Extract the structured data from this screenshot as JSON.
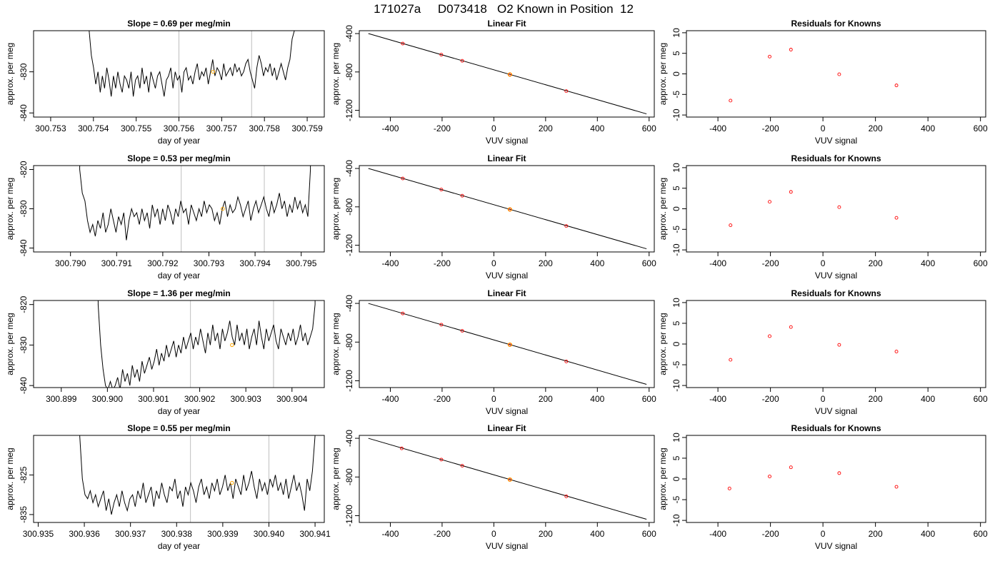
{
  "figure": {
    "title": "171027a     D073418   O2 Known in Position  12"
  },
  "chart_data": [
    {
      "type": "line",
      "panel": "row1-trace",
      "title": "Slope =  0.69  per meg/min",
      "xlabel": "day of year",
      "ylabel": "approx. per meg",
      "xlim": [
        300.7526,
        300.7594
      ],
      "ylim": [
        -841,
        -820
      ],
      "xticks": [
        "300.753",
        "300.754",
        "300.755",
        "300.756",
        "300.757",
        "300.758",
        "300.759"
      ],
      "xtick_values": [
        300.753,
        300.754,
        300.755,
        300.756,
        300.757,
        300.758,
        300.759
      ],
      "yticks": [
        "-840",
        "-830"
      ],
      "ytick_values": [
        -840,
        -830
      ],
      "vlines": [
        300.756,
        300.7577
      ],
      "marker": {
        "x": 300.7568,
        "y": -830,
        "color": "#ffa500"
      },
      "x_start": 300.7539,
      "x_end": 300.7587,
      "y_trace": [
        -820,
        -826,
        -829,
        -833,
        -830,
        -835,
        -831,
        -834,
        -829,
        -832,
        -836,
        -831,
        -834,
        -830,
        -833,
        -835,
        -831,
        -832,
        -834,
        -830,
        -836,
        -832,
        -831,
        -834,
        -829,
        -833,
        -831,
        -835,
        -830,
        -832,
        -834,
        -831,
        -830,
        -833,
        -836,
        -832,
        -831,
        -829,
        -834,
        -830,
        -832,
        -831,
        -835,
        -830,
        -829,
        -832,
        -831,
        -833,
        -830,
        -828,
        -832,
        -830,
        -831,
        -829,
        -833,
        -830,
        -827,
        -831,
        -829,
        -830,
        -832,
        -828,
        -831,
        -830,
        -829,
        -831,
        -828,
        -830,
        -829,
        -831,
        -830,
        -828,
        -827,
        -830,
        -832,
        -834,
        -829,
        -826,
        -828,
        -831,
        -829,
        -830,
        -828,
        -831,
        -829,
        -832,
        -830,
        -828,
        -830,
        -832,
        -829,
        -827,
        -822,
        -820
      ],
      "y_trace_note": ""
    },
    {
      "type": "scatter-line",
      "panel": "row1-fit",
      "title": "Linear Fit",
      "xlabel": "VUV signal",
      "ylabel": "approx. per meg",
      "xlim": [
        -520,
        620
      ],
      "ylim": [
        -1270,
        -370
      ],
      "xticks": [
        "-400",
        "-200",
        "0",
        "200",
        "400",
        "600"
      ],
      "xtick_values": [
        -400,
        -200,
        0,
        200,
        400,
        600
      ],
      "yticks": [
        "-400",
        "-800",
        "-1200"
      ],
      "ytick_values": [
        -400,
        -800,
        -1200
      ],
      "line": [
        [
          -485,
          -400
        ],
        [
          590,
          -1237
        ]
      ],
      "points": [
        [
          -352,
          -504
        ],
        [
          -203,
          -620
        ],
        [
          -122,
          -684
        ],
        [
          62,
          -827
        ],
        [
          280,
          -1000
        ]
      ],
      "highlight_index": 3
    },
    {
      "type": "scatter",
      "panel": "row1-resid",
      "title": "Residuals for Knowns",
      "xlabel": "VUV signal",
      "ylabel": "approx. per meg",
      "xlim": [
        -520,
        620
      ],
      "ylim": [
        -10.5,
        10.5
      ],
      "xticks": [
        "-400",
        "-200",
        "0",
        "200",
        "400",
        "600"
      ],
      "xtick_values": [
        -400,
        -200,
        0,
        200,
        400,
        600
      ],
      "yticks": [
        "-10",
        "-5",
        "0",
        "5",
        "10"
      ],
      "ytick_values": [
        -10,
        -5,
        0,
        5,
        10
      ],
      "points": [
        [
          -352,
          -6.5
        ],
        [
          -203,
          4.2
        ],
        [
          -122,
          5.9
        ],
        [
          62,
          -0.1
        ],
        [
          280,
          -2.8
        ]
      ]
    },
    {
      "type": "line",
      "panel": "row2-trace",
      "title": "Slope =  0.53  per meg/min",
      "xlabel": "day of year",
      "ylabel": "approx. per meg",
      "xlim": [
        300.7892,
        300.7955
      ],
      "ylim": [
        -841,
        -819
      ],
      "xticks": [
        "300.790",
        "300.791",
        "300.792",
        "300.793",
        "300.794",
        "300.795"
      ],
      "xtick_values": [
        300.79,
        300.791,
        300.792,
        300.793,
        300.794,
        300.795
      ],
      "yticks": [
        "-840",
        "-830",
        "-820"
      ],
      "ytick_values": [
        -840,
        -830,
        -820
      ],
      "vlines": [
        300.7924,
        300.7942
      ],
      "marker": {
        "x": 300.7933,
        "y": -830,
        "color": "#ffa500"
      },
      "x_start": 300.7902,
      "x_end": 300.7952,
      "y_trace": [
        -820,
        -826,
        -828,
        -833,
        -836,
        -834,
        -837,
        -833,
        -835,
        -831,
        -836,
        -834,
        -830,
        -833,
        -836,
        -832,
        -834,
        -831,
        -838,
        -833,
        -830,
        -832,
        -831,
        -834,
        -830,
        -833,
        -831,
        -835,
        -829,
        -832,
        -830,
        -834,
        -830,
        -833,
        -829,
        -831,
        -834,
        -830,
        -832,
        -828,
        -831,
        -830,
        -834,
        -829,
        -831,
        -833,
        -830,
        -832,
        -828,
        -831,
        -829,
        -830,
        -833,
        -831,
        -834,
        -830,
        -828,
        -832,
        -829,
        -831,
        -830,
        -827,
        -829,
        -832,
        -830,
        -828,
        -833,
        -830,
        -828,
        -831,
        -829,
        -827,
        -830,
        -832,
        -828,
        -831,
        -829,
        -826,
        -830,
        -828,
        -832,
        -829,
        -831,
        -827,
        -830,
        -828,
        -831,
        -829,
        -832,
        -820
      ],
      "y_trace_note": ""
    },
    {
      "type": "scatter-line",
      "panel": "row2-fit",
      "title": "Linear Fit",
      "xlabel": "VUV signal",
      "ylabel": "approx. per meg",
      "xlim": [
        -520,
        620
      ],
      "ylim": [
        -1270,
        -370
      ],
      "xticks": [
        "-400",
        "-200",
        "0",
        "200",
        "400",
        "600"
      ],
      "xtick_values": [
        -400,
        -200,
        0,
        200,
        400,
        600
      ],
      "yticks": [
        "-400",
        "-800",
        "-1200"
      ],
      "ytick_values": [
        -400,
        -800,
        -1200
      ],
      "line": [
        [
          -485,
          -400
        ],
        [
          590,
          -1237
        ]
      ],
      "points": [
        [
          -352,
          -504
        ],
        [
          -203,
          -620
        ],
        [
          -122,
          -684
        ],
        [
          62,
          -827
        ],
        [
          280,
          -1000
        ]
      ],
      "highlight_index": 3
    },
    {
      "type": "scatter",
      "panel": "row2-resid",
      "title": "Residuals for Knowns",
      "xlabel": "VUV signal",
      "ylabel": "approx. per meg",
      "xlim": [
        -520,
        620
      ],
      "ylim": [
        -10.5,
        10.5
      ],
      "xticks": [
        "-400",
        "-200",
        "0",
        "200",
        "400",
        "600"
      ],
      "xtick_values": [
        -400,
        -200,
        0,
        200,
        400,
        600
      ],
      "yticks": [
        "-10",
        "-5",
        "0",
        "5",
        "10"
      ],
      "ytick_values": [
        -10,
        -5,
        0,
        5,
        10
      ],
      "points": [
        [
          -352,
          -4
        ],
        [
          -203,
          1.7
        ],
        [
          -122,
          4.1
        ],
        [
          62,
          0.4
        ],
        [
          280,
          -2.2
        ]
      ]
    },
    {
      "type": "line",
      "panel": "row3-trace",
      "title": "Slope =  1.36  per meg/min",
      "xlabel": "day of year",
      "ylabel": "approx. per meg",
      "xlim": [
        300.8984,
        300.9047
      ],
      "ylim": [
        -840.5,
        -819
      ],
      "xticks": [
        "300.899",
        "300.900",
        "300.901",
        "300.902",
        "300.903",
        "300.904"
      ],
      "xtick_values": [
        300.899,
        300.9,
        300.901,
        300.902,
        300.903,
        300.904
      ],
      "yticks": [
        "-840",
        "-830",
        "-820"
      ],
      "ytick_values": [
        -840,
        -830,
        -820
      ],
      "vlines": [
        300.9018,
        300.9036
      ],
      "marker": {
        "x": 300.9027,
        "y": -830,
        "color": "#ffa500"
      },
      "x_start": 300.8998,
      "x_end": 300.9045,
      "y_trace": [
        -820,
        -830,
        -836,
        -840,
        -841,
        -839,
        -841,
        -840,
        -838,
        -841,
        -836,
        -839,
        -837,
        -840,
        -835,
        -838,
        -836,
        -839,
        -834,
        -837,
        -835,
        -833,
        -836,
        -834,
        -831,
        -835,
        -832,
        -834,
        -830,
        -833,
        -831,
        -829,
        -833,
        -830,
        -832,
        -828,
        -831,
        -829,
        -827,
        -831,
        -828,
        -830,
        -826,
        -829,
        -832,
        -827,
        -830,
        -825,
        -829,
        -827,
        -831,
        -826,
        -829,
        -827,
        -824,
        -828,
        -830,
        -825,
        -829,
        -827,
        -830,
        -826,
        -831,
        -828,
        -826,
        -830,
        -824,
        -828,
        -831,
        -826,
        -829,
        -827,
        -825,
        -829,
        -831,
        -826,
        -828,
        -830,
        -827,
        -829,
        -826,
        -830,
        -828,
        -825,
        -829,
        -827,
        -830,
        -828,
        -826,
        -820
      ],
      "y_trace_note": ""
    },
    {
      "type": "scatter-line",
      "panel": "row3-fit",
      "title": "Linear Fit",
      "xlabel": "VUV signal",
      "ylabel": "approx. per meg",
      "xlim": [
        -520,
        620
      ],
      "ylim": [
        -1270,
        -370
      ],
      "xticks": [
        "-400",
        "-200",
        "0",
        "200",
        "400",
        "600"
      ],
      "xtick_values": [
        -400,
        -200,
        0,
        200,
        400,
        600
      ],
      "yticks": [
        "-400",
        "-800",
        "-1200"
      ],
      "ytick_values": [
        -400,
        -800,
        -1200
      ],
      "line": [
        [
          -485,
          -400
        ],
        [
          590,
          -1237
        ]
      ],
      "points": [
        [
          -352,
          -504
        ],
        [
          -203,
          -620
        ],
        [
          -122,
          -684
        ],
        [
          62,
          -827
        ],
        [
          280,
          -1000
        ]
      ],
      "highlight_index": 3
    },
    {
      "type": "scatter",
      "panel": "row3-resid",
      "title": "Residuals for Knowns",
      "xlabel": "VUV signal",
      "ylabel": "approx. per meg",
      "xlim": [
        -520,
        620
      ],
      "ylim": [
        -10.5,
        10.5
      ],
      "xticks": [
        "-400",
        "-200",
        "0",
        "200",
        "400",
        "600"
      ],
      "xtick_values": [
        -400,
        -200,
        0,
        200,
        400,
        600
      ],
      "yticks": [
        "-10",
        "-5",
        "0",
        "5",
        "10"
      ],
      "ytick_values": [
        -10,
        -5,
        0,
        5,
        10
      ],
      "points": [
        [
          -352,
          -3.8
        ],
        [
          -203,
          1.9
        ],
        [
          -122,
          4.1
        ],
        [
          62,
          -0.2
        ],
        [
          280,
          -1.8
        ]
      ]
    },
    {
      "type": "line",
      "panel": "row4-trace",
      "title": "Slope =  0.55  per meg/min",
      "xlabel": "day of year",
      "ylabel": "approx. per meg",
      "xlim": [
        300.9349,
        300.9412
      ],
      "ylim": [
        -837,
        -815
      ],
      "xticks": [
        "300.935",
        "300.936",
        "300.937",
        "300.938",
        "300.939",
        "300.940",
        "300.941"
      ],
      "xtick_values": [
        300.935,
        300.936,
        300.937,
        300.938,
        300.939,
        300.94,
        300.941
      ],
      "yticks": [
        "-835",
        "-825"
      ],
      "ytick_values": [
        -835,
        -825
      ],
      "vlines": [
        300.9383,
        300.94
      ],
      "marker": {
        "x": 300.9392,
        "y": -827,
        "color": "#ffa500"
      },
      "x_start": 300.9359,
      "x_end": 300.941,
      "y_trace": [
        -815,
        -826,
        -830,
        -831,
        -829,
        -832,
        -830,
        -833,
        -831,
        -829,
        -834,
        -831,
        -835,
        -832,
        -830,
        -833,
        -829,
        -832,
        -834,
        -831,
        -830,
        -833,
        -829,
        -831,
        -827,
        -832,
        -830,
        -828,
        -833,
        -829,
        -831,
        -827,
        -830,
        -832,
        -828,
        -829,
        -826,
        -831,
        -829,
        -833,
        -828,
        -830,
        -827,
        -829,
        -832,
        -828,
        -826,
        -830,
        -828,
        -831,
        -827,
        -829,
        -826,
        -830,
        -828,
        -825,
        -829,
        -827,
        -831,
        -826,
        -828,
        -830,
        -825,
        -829,
        -827,
        -824,
        -828,
        -831,
        -826,
        -829,
        -827,
        -830,
        -826,
        -828,
        -825,
        -829,
        -827,
        -830,
        -826,
        -831,
        -828,
        -825,
        -829,
        -827,
        -830,
        -834,
        -826,
        -829,
        -824,
        -815
      ],
      "y_trace_note": ""
    },
    {
      "type": "scatter-line",
      "panel": "row4-fit",
      "title": "Linear Fit",
      "xlabel": "VUV signal",
      "ylabel": "approx. per meg",
      "xlim": [
        -520,
        620
      ],
      "ylim": [
        -1270,
        -370
      ],
      "xticks": [
        "-400",
        "-200",
        "0",
        "200",
        "400",
        "600"
      ],
      "xtick_values": [
        -400,
        -200,
        0,
        200,
        400,
        600
      ],
      "yticks": [
        "-400",
        "-800",
        "-1200"
      ],
      "ytick_values": [
        -400,
        -800,
        -1200
      ],
      "line": [
        [
          -485,
          -400
        ],
        [
          590,
          -1237
        ]
      ],
      "points": [
        [
          -356,
          -504
        ],
        [
          -203,
          -620
        ],
        [
          -122,
          -684
        ],
        [
          62,
          -827
        ],
        [
          280,
          -1000
        ]
      ],
      "highlight_index": 3
    },
    {
      "type": "scatter",
      "panel": "row4-resid",
      "title": "Residuals for Knowns",
      "xlabel": "VUV signal",
      "ylabel": "approx. per meg",
      "xlim": [
        -520,
        620
      ],
      "ylim": [
        -10.5,
        10.5
      ],
      "xticks": [
        "-400",
        "-200",
        "0",
        "200",
        "400",
        "600"
      ],
      "xtick_values": [
        -400,
        -200,
        0,
        200,
        400,
        600
      ],
      "yticks": [
        "-10",
        "-5",
        "0",
        "5",
        "10"
      ],
      "ytick_values": [
        -10,
        -5,
        0,
        5,
        10
      ],
      "points": [
        [
          -356,
          -2.3
        ],
        [
          -203,
          0.6
        ],
        [
          -122,
          2.8
        ],
        [
          62,
          1.4
        ],
        [
          280,
          -1.9
        ]
      ]
    }
  ],
  "colors": {
    "trace": "#000000",
    "vline": "#bebebe",
    "marker": "#ffa500",
    "points": "#ff0000"
  }
}
